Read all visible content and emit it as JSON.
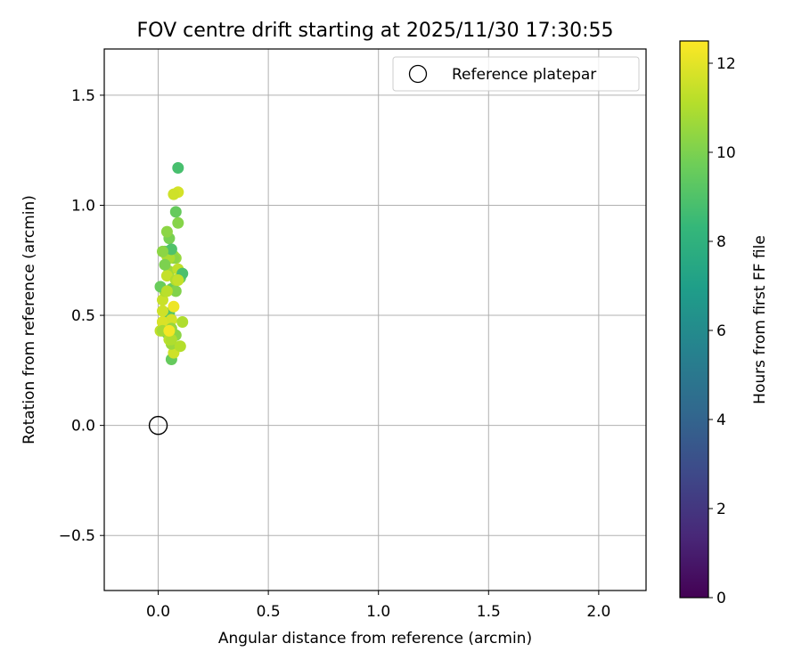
{
  "chart_data": {
    "type": "scatter",
    "title": "FOV centre drift starting at 2025/11/30 17:30:55",
    "xlabel": "Angular distance from reference (arcmin)",
    "ylabel": "Rotation from reference (arcmin)",
    "xlim": [
      -0.245,
      2.215
    ],
    "ylim": [
      -0.75,
      1.71
    ],
    "xticks": [
      0.0,
      0.5,
      1.0,
      1.5,
      2.0
    ],
    "xtick_labels": [
      "0.0",
      "0.5",
      "1.0",
      "1.5",
      "2.0"
    ],
    "yticks": [
      -0.5,
      0.0,
      0.5,
      1.0,
      1.5
    ],
    "ytick_labels": [
      "−0.5",
      "0.0",
      "0.5",
      "1.0",
      "1.5"
    ],
    "grid": true,
    "legend": {
      "position": "top-right",
      "entries": [
        "Reference platepar"
      ]
    },
    "reference": {
      "name": "Reference platepar",
      "x": 0.0,
      "y": 0.0
    },
    "colorbar": {
      "label": "Hours from first FF file",
      "min": 0,
      "max": 12.5,
      "ticks": [
        0,
        2,
        4,
        6,
        8,
        10,
        12
      ],
      "tick_labels": [
        "0",
        "2",
        "4",
        "6",
        "8",
        "10",
        "12"
      ],
      "colormap": "viridis",
      "stops": [
        "#440154",
        "#482878",
        "#3e4989",
        "#31688e",
        "#26828e",
        "#1f9e89",
        "#35b779",
        "#6ece58",
        "#b5de2b",
        "#fde725"
      ]
    },
    "series": [
      {
        "name": "FOV centre",
        "x": [
          0.01,
          0.09,
          0.06,
          0.05,
          0.08,
          0.04,
          0.07,
          0.02,
          0.05,
          0.06,
          0.03,
          0.09,
          0.06,
          0.08,
          0.04,
          0.05,
          0.07,
          0.02,
          0.09,
          0.11,
          0.03,
          0.04,
          0.1,
          0.02,
          0.06,
          0.07,
          0.05,
          0.08,
          0.03,
          0.05,
          0.07,
          0.02,
          0.04,
          0.08,
          0.06,
          0.09,
          0.01,
          0.07,
          0.05,
          0.06,
          0.08,
          0.02,
          0.04,
          0.1,
          0.03,
          0.06,
          0.11,
          0.09,
          0.02,
          0.05
        ],
        "y": [
          0.43,
          1.17,
          0.62,
          0.51,
          0.76,
          0.42,
          0.77,
          0.57,
          0.47,
          0.3,
          0.43,
          1.06,
          0.48,
          0.61,
          0.77,
          0.7,
          0.33,
          0.52,
          0.92,
          0.47,
          0.79,
          0.68,
          0.67,
          0.47,
          0.37,
          0.76,
          0.39,
          0.97,
          0.61,
          0.85,
          0.54,
          0.47,
          0.88,
          0.66,
          0.44,
          0.71,
          0.63,
          1.05,
          0.76,
          0.8,
          0.41,
          0.43,
          0.61,
          0.36,
          0.73,
          0.39,
          0.69,
          0.66,
          0.79,
          0.43
        ],
        "t": [
          11.3,
          8.8,
          9.6,
          9.1,
          10.5,
          9.1,
          10.7,
          11.5,
          11.8,
          9.5,
          10.3,
          11.7,
          11.7,
          10.1,
          11.0,
          10.7,
          11.6,
          11.6,
          10.2,
          11.0,
          9.4,
          11.4,
          9.6,
          10.6,
          10.6,
          10.3,
          11.2,
          9.5,
          11.0,
          9.9,
          12.2,
          11.8,
          10.3,
          11.0,
          10.5,
          11.3,
          9.6,
          11.6,
          10.9,
          9.0,
          10.3,
          10.8,
          11.2,
          11.1,
          10.0,
          11.0,
          8.9,
          11.4,
          10.3,
          12.3
        ]
      }
    ]
  }
}
